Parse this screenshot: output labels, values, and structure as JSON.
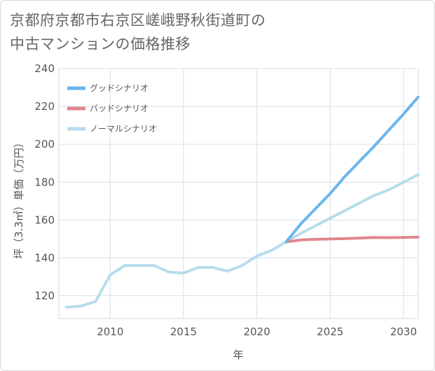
{
  "title": {
    "line1": "京都府京都市右京区嵯峨野秋街道町の",
    "line2": "中古マンションの価格推移"
  },
  "chart_data": {
    "type": "line",
    "xlabel": "年",
    "ylabel": "坪（3.3㎡）単価（万円）",
    "xlim": [
      2006.5,
      2031
    ],
    "ylim": [
      108,
      240
    ],
    "xticks": [
      2010,
      2015,
      2020,
      2025,
      2030
    ],
    "yticks": [
      120,
      140,
      160,
      180,
      200,
      220,
      240
    ],
    "grid": true,
    "legend_position": "top-left",
    "series": [
      {
        "name": "グッドシナリオ",
        "color": "#6bb6ec",
        "x": [
          2022,
          2023,
          2024,
          2025,
          2026,
          2027,
          2028,
          2029,
          2030,
          2031
        ],
        "values": [
          148.5,
          158,
          166,
          174,
          183,
          191,
          199,
          207.5,
          216,
          225
        ]
      },
      {
        "name": "バッドシナリオ",
        "color": "#e0868e",
        "x": [
          2022,
          2023,
          2024,
          2025,
          2026,
          2027,
          2028,
          2029,
          2030,
          2031
        ],
        "values": [
          148.5,
          149.5,
          149.8,
          150,
          150.2,
          150.5,
          150.8,
          150.7,
          150.8,
          151
        ]
      },
      {
        "name": "ノーマルシナリオ",
        "color": "#b8dcec",
        "x": [
          2007,
          2008,
          2009,
          2010,
          2011,
          2012,
          2013,
          2014,
          2015,
          2016,
          2017,
          2018,
          2019,
          2020,
          2021,
          2022,
          2023,
          2024,
          2025,
          2026,
          2027,
          2028,
          2029,
          2030,
          2031
        ],
        "values": [
          114,
          114.5,
          117,
          131,
          136,
          136,
          136,
          132.5,
          132,
          135,
          135,
          133,
          136,
          141,
          144,
          148.5,
          153,
          157,
          161,
          165,
          169,
          173,
          176,
          180,
          184
        ]
      }
    ]
  }
}
